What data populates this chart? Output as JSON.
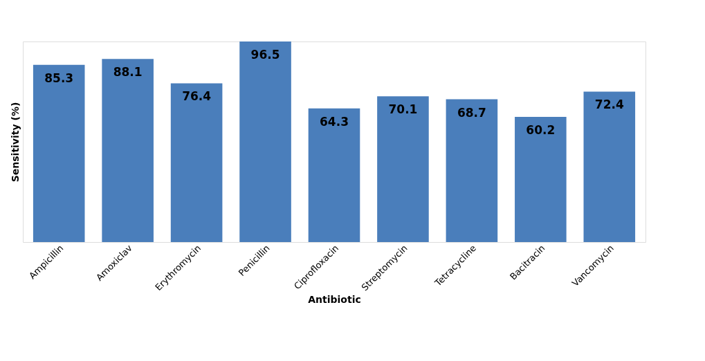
{
  "chart_data": {
    "type": "bar",
    "xlabel": "Antibiotic",
    "ylabel": "Sensitivity (%)",
    "categories": [
      "Ampicillin",
      "Amoxiclav",
      "Erythromycin",
      "Penicillin",
      "Ciprofloxacin",
      "Streptomycin",
      "Tetracycline",
      "Bacitracin",
      "Vancomycin"
    ],
    "values": [
      85.3,
      88.1,
      76.4,
      96.5,
      64.3,
      70.1,
      68.7,
      60.2,
      72.4
    ],
    "color": "#4a7ebb",
    "data_labels": true
  }
}
